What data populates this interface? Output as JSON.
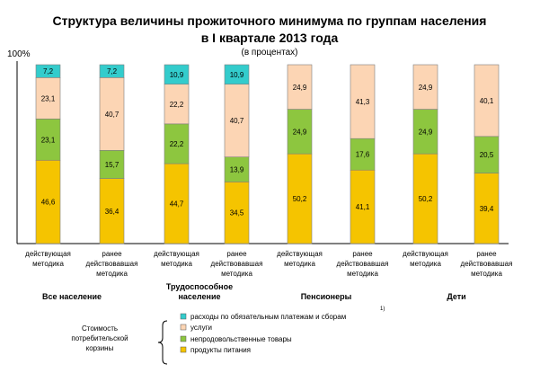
{
  "chart_data": {
    "type": "bar",
    "stacked": true,
    "title": [
      "Структура величины прожиточного минимума по группам населения",
      "в I квартале 2013 года"
    ],
    "subtitle": "(в процентах)",
    "y_axis_label": "100%",
    "ylim": [
      0,
      100
    ],
    "categories": [
      [
        "действующая",
        "методика"
      ],
      [
        "ранее",
        "действовавшая",
        "методика"
      ],
      [
        "действующая",
        "методика"
      ],
      [
        "ранее",
        "действовавшая",
        "методика"
      ],
      [
        "действующая",
        "методика"
      ],
      [
        "ранее",
        "действовавшая",
        "методика"
      ],
      [
        "действующая",
        "методика"
      ],
      [
        "ранее",
        "действовавшая",
        "методика"
      ]
    ],
    "groups": [
      {
        "label": [
          "Все население"
        ]
      },
      {
        "label": [
          "Трудоспособное",
          "население"
        ]
      },
      {
        "label": [
          "Пенсионеры"
        ],
        "superscript": "1)"
      },
      {
        "label": [
          "Дети"
        ]
      }
    ],
    "series": [
      {
        "name": "продукты питания",
        "color": "#f5c400",
        "values": [
          46.6,
          36.4,
          44.7,
          34.5,
          50.2,
          41.1,
          50.2,
          39.4
        ],
        "labels": [
          "46,6",
          "36,4",
          "44,7",
          "34,5",
          "50,2",
          "41,1",
          "50,2",
          "39,4"
        ]
      },
      {
        "name": "непродовольственные товары",
        "color": "#8dc63f",
        "values": [
          23.1,
          15.7,
          22.2,
          13.9,
          24.9,
          17.6,
          24.9,
          20.5
        ],
        "labels": [
          "23,1",
          "15,7",
          "22,2",
          "13,9",
          "24,9",
          "17,6",
          "24,9",
          "20,5"
        ]
      },
      {
        "name": "услуги",
        "color": "#fcd5b4",
        "values": [
          23.1,
          40.7,
          22.2,
          40.7,
          24.9,
          41.3,
          24.9,
          40.1
        ],
        "labels": [
          "23,1",
          "40,7",
          "22,2",
          "40,7",
          "24,9",
          "41,3",
          "24,9",
          "40,1"
        ]
      },
      {
        "name": "расходы по обязательным платежам и сборам",
        "color": "#33cccc",
        "values": [
          7.2,
          7.2,
          10.9,
          10.9,
          0,
          0,
          0,
          0
        ],
        "labels": [
          "7,2",
          "7,2",
          "10,9",
          "10,9",
          "",
          "",
          "",
          ""
        ]
      }
    ],
    "legend": {
      "title": [
        "Стоимость",
        "потребительской",
        "корзины"
      ],
      "placement": "bottom",
      "order": [
        3,
        2,
        1,
        0
      ]
    }
  }
}
